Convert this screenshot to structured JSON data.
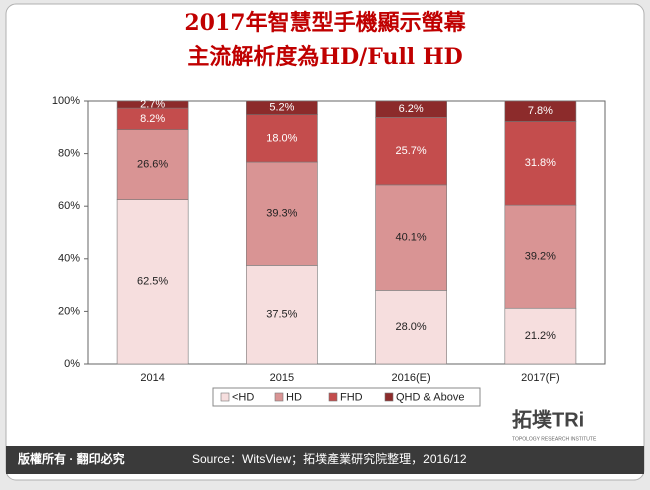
{
  "chart_data": {
    "type": "stacked_bar",
    "title": "2017年智慧型手機顯示螢幕",
    "subtitle": "主流解析度為HD/Full HD",
    "categories": [
      "2014",
      "2015",
      "2016(E)",
      "2017(F)"
    ],
    "series": [
      {
        "name": "<HD",
        "color": "#f6dede",
        "values": [
          62.5,
          37.5,
          28.0,
          21.2
        ],
        "value_labels": [
          "62.5%",
          "37.5%",
          "28.0%",
          "21.2%"
        ]
      },
      {
        "name": "HD",
        "color": "#d99494",
        "values": [
          26.6,
          39.3,
          40.1,
          39.2
        ],
        "value_labels": [
          "26.6%",
          "39.3%",
          "40.1%",
          "39.2%"
        ]
      },
      {
        "name": "FHD",
        "color": "#c44d4d",
        "values": [
          8.2,
          18.0,
          25.7,
          31.8
        ],
        "value_labels": [
          "8.2%",
          "18.0%",
          "25.7%",
          "31.8%"
        ]
      },
      {
        "name": "QHD & Above",
        "color": "#8c2b2b",
        "values": [
          2.7,
          5.2,
          6.2,
          7.8
        ],
        "value_labels": [
          "2.7%",
          "5.2%",
          "6.2%",
          "7.8%"
        ]
      }
    ],
    "ylim": [
      0,
      100
    ],
    "yticks": [
      {
        "value": 0,
        "label": "0%"
      },
      {
        "value": 20,
        "label": "20%"
      },
      {
        "value": 40,
        "label": "40%"
      },
      {
        "value": 60,
        "label": "60%"
      },
      {
        "value": 80,
        "label": "80%"
      },
      {
        "value": 100,
        "label": "100%"
      }
    ],
    "grid": false,
    "legend": "bottom"
  },
  "footer": {
    "copyright": "版權所有 · 翻印必究",
    "source": "Source：WitsView；拓墣產業研究院整理，2016/12",
    "logo": "拓墣TRi",
    "logo_subtitle": "TOPOLOGY RESEARCH INSTITUTE"
  }
}
